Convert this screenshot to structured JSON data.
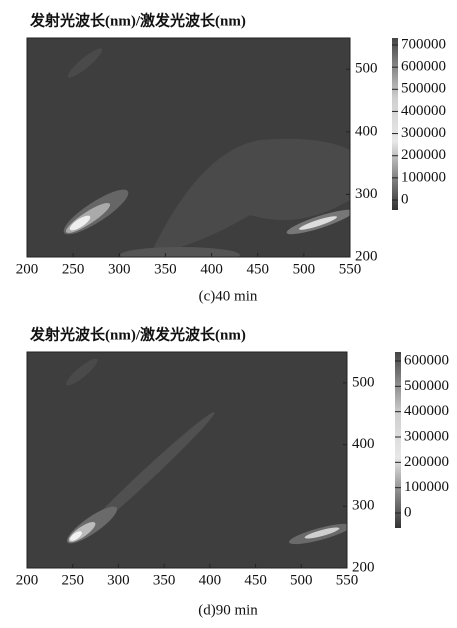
{
  "chart_data": [
    {
      "type": "contour",
      "title": "发射光波长(nm)/激发光波长(nm)",
      "caption": "(c)40 min",
      "xlim": [
        200,
        550
      ],
      "xticks": [
        200,
        250,
        300,
        350,
        400,
        450,
        500,
        550
      ],
      "ylim": [
        200,
        550
      ],
      "yticks": [
        200,
        300,
        400,
        500
      ],
      "zlim": [
        0,
        700000
      ],
      "zticks": [
        0,
        100000,
        200000,
        300000,
        400000,
        500000,
        600000,
        700000
      ]
    },
    {
      "type": "contour",
      "title": "发射光波长(nm)/激发光波长(nm)",
      "caption": "(d)90 min",
      "xlim": [
        200,
        550
      ],
      "xticks": [
        200,
        250,
        300,
        350,
        400,
        450,
        500,
        550
      ],
      "ylim": [
        200,
        550
      ],
      "yticks": [
        200,
        300,
        400,
        500
      ],
      "zlim": [
        0,
        600000
      ],
      "zticks": [
        0,
        100000,
        200000,
        300000,
        400000,
        500000,
        600000
      ]
    }
  ]
}
